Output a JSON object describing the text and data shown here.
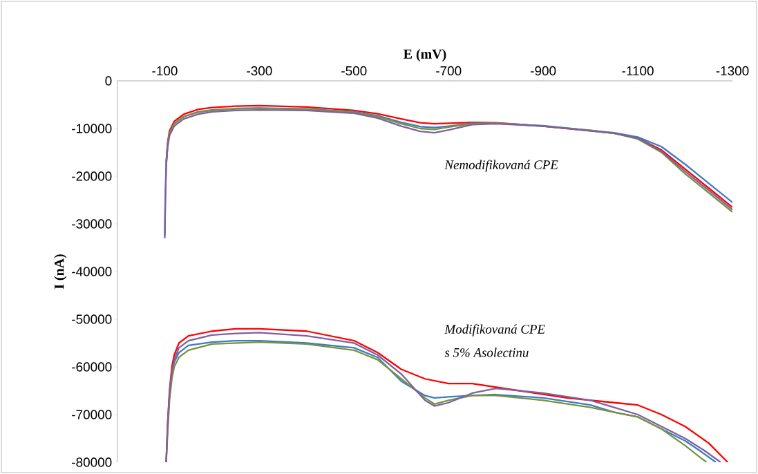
{
  "chart_data": {
    "type": "line",
    "xlabel": "E (mV)",
    "ylabel": "I (nA)",
    "xlim": [
      0,
      -1300
    ],
    "xticks": [
      -100,
      -300,
      -500,
      -700,
      -900,
      -1100,
      -1300
    ],
    "ylim": [
      -80000,
      0
    ],
    "yticks": [
      0,
      -10000,
      -20000,
      -30000,
      -40000,
      -50000,
      -60000,
      -70000,
      -80000
    ],
    "grid": false,
    "marker": "none",
    "line_style": "solid",
    "annotations": [
      "Nemodifikovaná CPE",
      "Modifikovaná CPE",
      "s 5% Asolectinu"
    ],
    "series": [
      {
        "color": "#ff0000",
        "x": [
          -103,
          -106,
          -110,
          -120,
          -140,
          -170,
          -200,
          -250,
          -300,
          -400,
          -500,
          -550,
          -600,
          -640,
          -670,
          -700,
          -750,
          -800,
          -900,
          -1000,
          -1050,
          -1100,
          -1150,
          -1200,
          -1250,
          -1300
        ],
        "values": [
          -17000,
          -13000,
          -10500,
          -8500,
          -7000,
          -6000,
          -5600,
          -5300,
          -5200,
          -5500,
          -6200,
          -6900,
          -8000,
          -8800,
          -9000,
          -8900,
          -8700,
          -8800,
          -9500,
          -10500,
          -11000,
          -12000,
          -14500,
          -18500,
          -22500,
          -26500
        ]
      },
      {
        "color": "#3b7dc4",
        "x": [
          -100,
          -101,
          -103,
          -106,
          -110,
          -120,
          -140,
          -170,
          -200,
          -250,
          -300,
          -400,
          -500,
          -550,
          -600,
          -640,
          -670,
          -700,
          -750,
          -800,
          -900,
          -1000,
          -1050,
          -1100,
          -1150,
          -1200,
          -1250,
          -1300
        ],
        "values": [
          -32500,
          -25500,
          -17500,
          -13500,
          -11000,
          -9000,
          -7500,
          -6500,
          -6100,
          -5800,
          -5700,
          -5900,
          -6500,
          -7300,
          -8700,
          -9600,
          -9800,
          -9500,
          -8900,
          -8900,
          -9400,
          -10400,
          -10900,
          -11800,
          -13800,
          -17500,
          -21500,
          -25500
        ]
      },
      {
        "color": "#77933c",
        "x": [
          -103,
          -106,
          -110,
          -120,
          -140,
          -170,
          -200,
          -250,
          -300,
          -400,
          -500,
          -550,
          -600,
          -640,
          -670,
          -700,
          -750,
          -800,
          -900,
          -1000,
          -1050,
          -1100,
          -1150,
          -1200,
          -1250,
          -1300
        ],
        "values": [
          -17500,
          -13500,
          -11000,
          -9000,
          -7500,
          -6600,
          -6200,
          -5900,
          -5800,
          -6000,
          -6600,
          -7500,
          -9000,
          -10000,
          -10200,
          -9700,
          -9000,
          -8900,
          -9500,
          -10400,
          -11000,
          -12200,
          -15000,
          -19500,
          -23500,
          -27500
        ]
      },
      {
        "color": "#7f60a0",
        "x": [
          -100,
          -101,
          -103,
          -106,
          -110,
          -120,
          -140,
          -170,
          -200,
          -250,
          -300,
          -400,
          -500,
          -550,
          -600,
          -640,
          -670,
          -700,
          -750,
          -800,
          -900,
          -1000,
          -1050,
          -1100,
          -1150,
          -1200,
          -1250,
          -1300
        ],
        "values": [
          -33000,
          -26000,
          -18000,
          -14000,
          -11500,
          -9500,
          -8000,
          -7000,
          -6500,
          -6200,
          -6100,
          -6200,
          -6800,
          -7800,
          -9500,
          -10600,
          -10900,
          -10300,
          -9200,
          -9000,
          -9500,
          -10500,
          -11000,
          -12000,
          -14800,
          -19000,
          -23000,
          -27000
        ]
      },
      {
        "color": "#ff0000",
        "x": [
          -103,
          -106,
          -110,
          -115,
          -120,
          -130,
          -150,
          -200,
          -250,
          -300,
          -400,
          -500,
          -550,
          -600,
          -650,
          -700,
          -750,
          -850,
          -950,
          -1050,
          -1100,
          -1150,
          -1200,
          -1250,
          -1290
        ],
        "values": [
          -80000,
          -72000,
          -65000,
          -60000,
          -57500,
          -55000,
          -53500,
          -52500,
          -52000,
          -52000,
          -52500,
          -54500,
          -57000,
          -60500,
          -62500,
          -63500,
          -63500,
          -65000,
          -66500,
          -67500,
          -68000,
          -70000,
          -72500,
          -76000,
          -80000
        ]
      },
      {
        "color": "#3b7dc4",
        "x": [
          -115,
          -120,
          -130,
          -150,
          -200,
          -250,
          -300,
          -400,
          -500,
          -550,
          -600,
          -650,
          -670,
          -700,
          -750,
          -800,
          -900,
          -1000,
          -1050,
          -1100,
          -1150,
          -1200,
          -1230,
          -1265
        ],
        "values": [
          -61500,
          -59000,
          -57000,
          -55500,
          -54800,
          -54500,
          -54500,
          -55000,
          -56000,
          -58000,
          -63000,
          -66000,
          -66500,
          -66300,
          -66000,
          -65800,
          -66500,
          -68000,
          -69500,
          -70500,
          -73000,
          -75500,
          -77500,
          -80000
        ]
      },
      {
        "color": "#77933c",
        "x": [
          -103,
          -106,
          -110,
          -115,
          -120,
          -130,
          -150,
          -200,
          -250,
          -300,
          -400,
          -500,
          -550,
          -600,
          -650,
          -670,
          -700,
          -750,
          -800,
          -900,
          -1000,
          -1050,
          -1100,
          -1150,
          -1200,
          -1245
        ],
        "values": [
          -80000,
          -74000,
          -67000,
          -62500,
          -60000,
          -58000,
          -56500,
          -55200,
          -55000,
          -54800,
          -55200,
          -56500,
          -58500,
          -62500,
          -66500,
          -67800,
          -67000,
          -66000,
          -66000,
          -67000,
          -68500,
          -69500,
          -70500,
          -73000,
          -76500,
          -80000
        ]
      },
      {
        "color": "#7f60a0",
        "x": [
          -103,
          -106,
          -110,
          -115,
          -120,
          -130,
          -150,
          -200,
          -250,
          -300,
          -400,
          -500,
          -550,
          -600,
          -650,
          -670,
          -700,
          -750,
          -800,
          -900,
          -1000,
          -1050,
          -1100,
          -1150,
          -1200,
          -1240,
          -1275
        ],
        "values": [
          -80000,
          -72500,
          -65500,
          -61000,
          -58500,
          -56000,
          -54500,
          -53300,
          -53000,
          -52800,
          -53500,
          -55000,
          -57500,
          -61500,
          -67000,
          -68200,
          -67500,
          -65500,
          -64500,
          -65500,
          -67000,
          -68500,
          -70000,
          -72500,
          -75000,
          -77500,
          -80000
        ]
      }
    ]
  }
}
